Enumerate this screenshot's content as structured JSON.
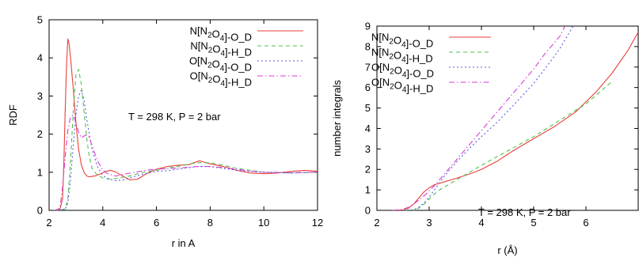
{
  "chart_data": [
    {
      "type": "line",
      "title": "",
      "xlabel": "r in A",
      "ylabel": "RDF",
      "xlim": [
        2,
        12
      ],
      "ylim": [
        0,
        5
      ],
      "xticks": [
        2,
        4,
        6,
        8,
        10,
        12
      ],
      "yticks": [
        0,
        1,
        2,
        3,
        4,
        5
      ],
      "grid": false,
      "legend_position": "top-right",
      "annotation": "T = 298 K, P = 2 bar",
      "series": [
        {
          "name": "N[N2O4]-O_D",
          "color": "#e8403a",
          "dash": "",
          "x": [
            2.2,
            2.4,
            2.5,
            2.55,
            2.6,
            2.65,
            2.7,
            2.75,
            2.8,
            2.9,
            3.0,
            3.1,
            3.2,
            3.3,
            3.4,
            3.5,
            3.7,
            3.9,
            4.1,
            4.3,
            4.5,
            4.8,
            5.0,
            5.3,
            5.6,
            6.0,
            6.4,
            6.8,
            7.2,
            7.6,
            8.0,
            8.5,
            9.0,
            9.5,
            10.0,
            10.5,
            11.0,
            11.5,
            12.0
          ],
          "y": [
            0,
            0.02,
            0.3,
            1.2,
            2.6,
            3.8,
            4.5,
            4.35,
            4.0,
            3.2,
            2.3,
            1.6,
            1.2,
            1.0,
            0.9,
            0.88,
            0.9,
            0.95,
            1.02,
            1.05,
            1.0,
            0.88,
            0.8,
            0.82,
            0.95,
            1.08,
            1.15,
            1.18,
            1.2,
            1.3,
            1.22,
            1.15,
            1.05,
            0.98,
            0.96,
            0.98,
            1.02,
            1.05,
            1.03
          ]
        },
        {
          "name": "N[N2O4]-H_D",
          "color": "#4fc24f",
          "dash": "5,4",
          "x": [
            2.2,
            2.6,
            2.7,
            2.8,
            2.9,
            3.0,
            3.1,
            3.2,
            3.3,
            3.4,
            3.5,
            3.6,
            3.8,
            4.0,
            4.3,
            4.6,
            5.0,
            5.5,
            6.0,
            6.5,
            7.0,
            7.5,
            8.0,
            8.5,
            9.0,
            9.5,
            10.0,
            11.0,
            12.0
          ],
          "y": [
            0,
            0.03,
            0.3,
            1.3,
            2.6,
            3.55,
            3.7,
            3.3,
            2.6,
            1.9,
            1.4,
            1.1,
            0.92,
            0.85,
            0.82,
            0.85,
            0.9,
            1.0,
            1.05,
            1.12,
            1.18,
            1.25,
            1.25,
            1.18,
            1.1,
            1.05,
            1.0,
            0.98,
            1.0
          ]
        },
        {
          "name": "O[N2O4]-O_D",
          "color": "#5a5ae0",
          "dash": "2,3",
          "x": [
            2.2,
            2.6,
            2.7,
            2.8,
            2.9,
            3.0,
            3.1,
            3.2,
            3.3,
            3.4,
            3.6,
            3.8,
            4.0,
            4.2,
            4.5,
            4.8,
            5.0,
            5.5,
            6.0,
            6.5,
            7.0,
            7.5,
            8.0,
            8.5,
            9.0,
            9.5,
            10.0,
            11.0,
            12.0
          ],
          "y": [
            0,
            0.02,
            0.2,
            0.8,
            1.7,
            2.5,
            3.0,
            3.15,
            2.9,
            2.4,
            1.6,
            1.15,
            0.92,
            0.82,
            0.78,
            0.8,
            0.85,
            0.95,
            1.02,
            1.05,
            1.1,
            1.15,
            1.15,
            1.1,
            1.05,
            1.02,
            1.0,
            0.98,
            1.0
          ]
        },
        {
          "name": "O[N2O4]-H_D",
          "color": "#d43fd4",
          "dash": "7,3,1.5,3",
          "x": [
            2.2,
            2.4,
            2.5,
            2.6,
            2.7,
            2.8,
            2.9,
            3.0,
            3.1,
            3.2,
            3.3,
            3.4,
            3.5,
            3.6,
            3.8,
            4.0,
            4.2,
            4.5,
            4.8,
            5.2,
            5.6,
            6.0,
            6.5,
            7.0,
            7.5,
            8.0,
            8.5,
            9.0,
            9.5,
            10.0,
            11.0,
            12.0
          ],
          "y": [
            0,
            0.05,
            0.6,
            1.4,
            2.1,
            2.45,
            2.5,
            2.3,
            2.05,
            1.9,
            1.95,
            1.98,
            1.9,
            1.7,
            1.3,
            1.05,
            0.95,
            0.9,
            0.95,
            1.0,
            1.05,
            1.08,
            1.1,
            1.12,
            1.15,
            1.15,
            1.12,
            1.08,
            1.03,
            1.0,
            0.99,
            1.0
          ]
        }
      ]
    },
    {
      "type": "line",
      "title": "",
      "xlabel": "r (Å)",
      "ylabel": "number integrals",
      "xlim": [
        2,
        7
      ],
      "ylim": [
        0,
        9
      ],
      "xticks": [
        2,
        3,
        4,
        5,
        6
      ],
      "yticks": [
        0,
        1,
        2,
        3,
        4,
        5,
        6,
        7,
        8,
        9
      ],
      "grid": false,
      "legend_position": "top-left",
      "annotation": "T = 298 K, P = 2 bar",
      "series": [
        {
          "name": "N[N2O4]-O_D",
          "color": "#e8403a",
          "dash": "",
          "x": [
            2.3,
            2.5,
            2.6,
            2.7,
            2.8,
            2.9,
            3.0,
            3.1,
            3.3,
            3.5,
            3.8,
            4.0,
            4.3,
            4.6,
            5.0,
            5.4,
            5.8,
            6.2,
            6.5,
            6.8,
            7.0
          ],
          "y": [
            0,
            0.02,
            0.1,
            0.3,
            0.6,
            0.9,
            1.1,
            1.25,
            1.4,
            1.55,
            1.8,
            2.0,
            2.4,
            2.9,
            3.5,
            4.1,
            4.8,
            5.8,
            6.7,
            7.8,
            8.7
          ]
        },
        {
          "name": "N[N2O4]-H_D",
          "color": "#4fc24f",
          "dash": "5,4",
          "x": [
            2.5,
            2.7,
            2.8,
            2.9,
            3.0,
            3.1,
            3.2,
            3.4,
            3.6,
            3.8,
            4.0,
            4.5,
            5.0,
            5.5,
            6.0,
            6.5
          ],
          "y": [
            0,
            0.02,
            0.1,
            0.3,
            0.55,
            0.8,
            1.0,
            1.3,
            1.6,
            1.9,
            2.2,
            2.9,
            3.6,
            4.4,
            5.2,
            6.3
          ]
        },
        {
          "name": "O[N2O4]-O_D",
          "color": "#5a5ae0",
          "dash": "2,3",
          "x": [
            2.5,
            2.7,
            2.8,
            2.9,
            3.0,
            3.1,
            3.2,
            3.3,
            3.5,
            3.8,
            4.0,
            4.3,
            4.6,
            5.0,
            5.3,
            5.5,
            5.8
          ],
          "y": [
            0,
            0.03,
            0.15,
            0.35,
            0.65,
            1.0,
            1.35,
            1.7,
            2.3,
            3.1,
            3.6,
            4.3,
            5.1,
            6.2,
            7.2,
            7.9,
            9.2
          ]
        },
        {
          "name": "O[N2O4]-H_D",
          "color": "#d43fd4",
          "dash": "7,3,1.5,3",
          "x": [
            2.3,
            2.5,
            2.6,
            2.7,
            2.8,
            2.9,
            3.0,
            3.1,
            3.3,
            3.5,
            3.8,
            4.0,
            4.3,
            4.6,
            5.0,
            5.2,
            5.5,
            5.6
          ],
          "y": [
            0,
            0.05,
            0.15,
            0.3,
            0.5,
            0.7,
            0.95,
            1.2,
            1.8,
            2.4,
            3.3,
            3.9,
            4.8,
            5.7,
            6.9,
            7.6,
            8.5,
            9.0
          ]
        }
      ]
    }
  ]
}
